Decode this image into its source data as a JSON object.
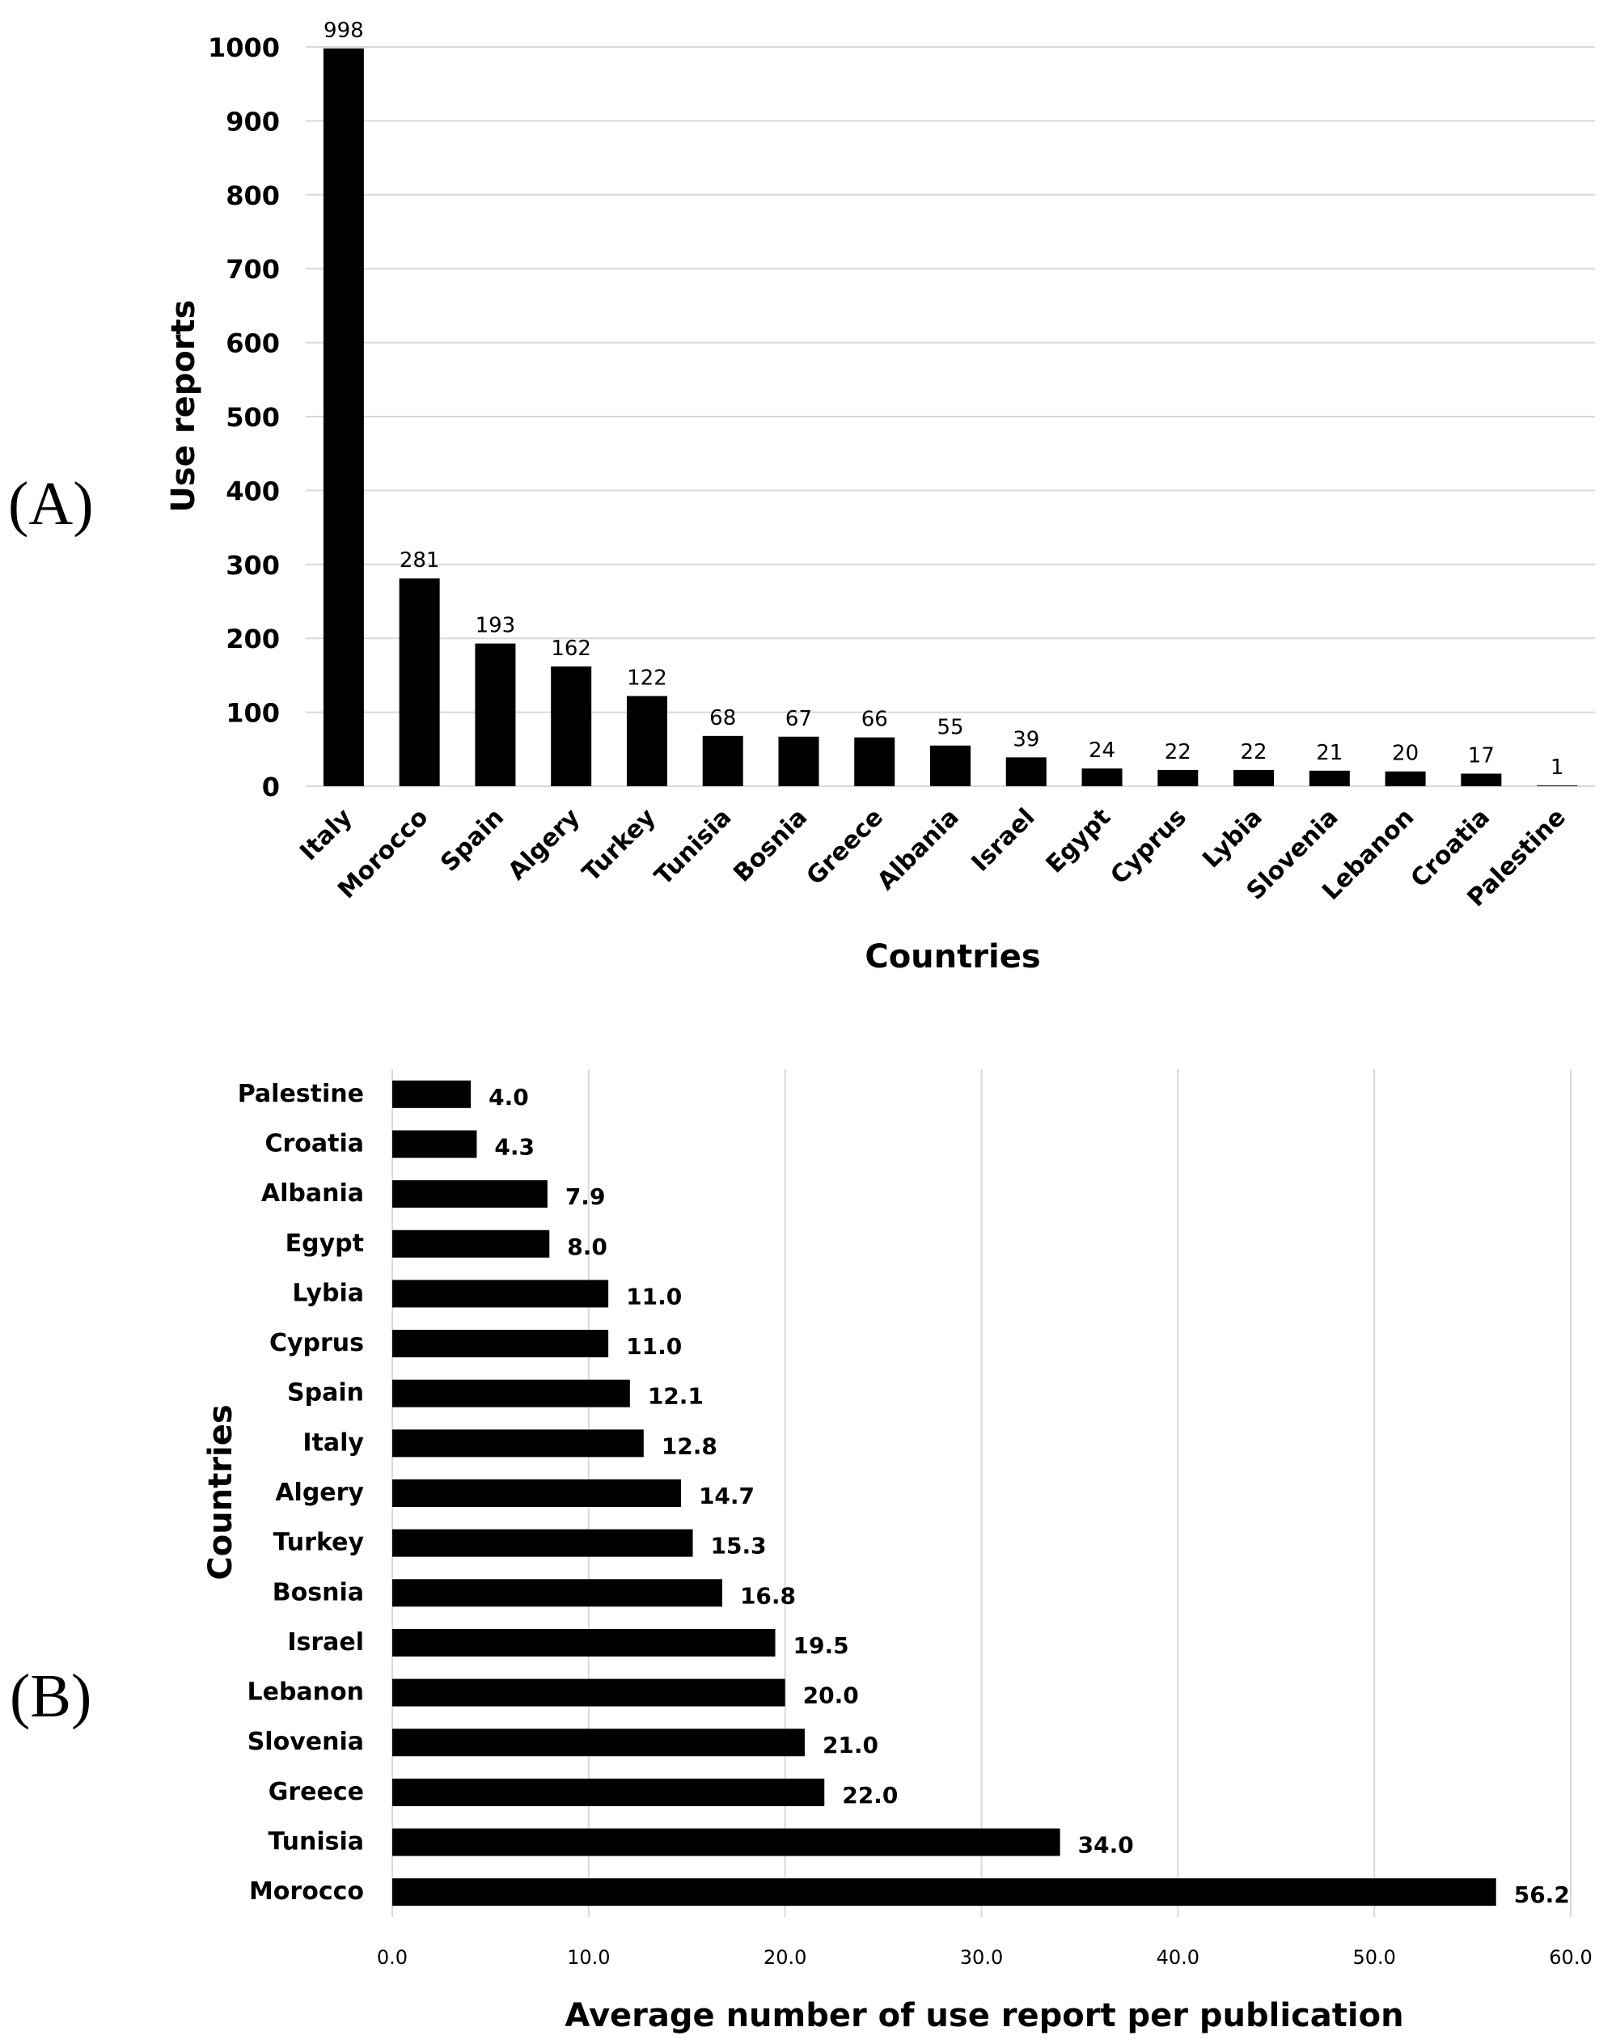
{
  "chart_data": [
    {
      "panel": "(A)",
      "type": "bar",
      "orientation": "vertical",
      "title": "",
      "xlabel": "Countries",
      "ylabel": "Use reports",
      "ylim": [
        0,
        1000
      ],
      "yticks": [
        "0",
        "100",
        "200",
        "300",
        "400",
        "500",
        "600",
        "700",
        "800",
        "900",
        "1000"
      ],
      "grid": true,
      "categories": [
        "Italy",
        "Morocco",
        "Spain",
        "Algery",
        "Turkey",
        "Tunisia",
        "Bosnia",
        "Greece",
        "Albania",
        "Israel",
        "Egypt",
        "Cyprus",
        "Lybia",
        "Slovenia",
        "Lebanon",
        "Croatia",
        "Palestine"
      ],
      "values": [
        998,
        281,
        193,
        162,
        122,
        68,
        67,
        66,
        55,
        39,
        24,
        22,
        22,
        21,
        20,
        17,
        1
      ],
      "value_labels": [
        "998",
        "281",
        "193",
        "162",
        "122",
        "68",
        "67",
        "66",
        "55",
        "39",
        "24",
        "22",
        "22",
        "21",
        "20",
        "17",
        "1"
      ],
      "bar_color": "#000000",
      "grid_color": "#d9d9d9"
    },
    {
      "panel": "(B)",
      "type": "bar",
      "orientation": "horizontal",
      "title": "",
      "xlabel": "Average number of use report per publication",
      "ylabel": "Countries",
      "xlim": [
        0,
        60
      ],
      "xticks": [
        "0.0",
        "10.0",
        "20.0",
        "30.0",
        "40.0",
        "50.0",
        "60.0"
      ],
      "grid": true,
      "categories": [
        "Palestine",
        "Croatia",
        "Albania",
        "Egypt",
        "Lybia",
        "Cyprus",
        "Spain",
        "Italy",
        "Algery",
        "Turkey",
        "Bosnia",
        "Israel",
        "Lebanon",
        "Slovenia",
        "Greece",
        "Tunisia",
        "Morocco"
      ],
      "values": [
        4.0,
        4.3,
        7.9,
        8.0,
        11.0,
        11.0,
        12.1,
        12.8,
        14.7,
        15.3,
        16.8,
        19.5,
        20.0,
        21.0,
        22.0,
        34.0,
        56.2
      ],
      "value_labels": [
        "4.0",
        "4.3",
        "7.9",
        "8.0",
        "11.0",
        "11.0",
        "12.1",
        "12.8",
        "14.7",
        "15.3",
        "16.8",
        "19.5",
        "20.0",
        "21.0",
        "22.0",
        "34.0",
        "56.2"
      ],
      "bar_color": "#000000",
      "grid_color": "#d9d9d9"
    }
  ]
}
